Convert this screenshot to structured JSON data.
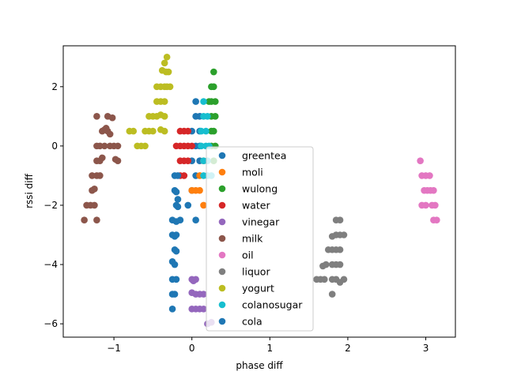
{
  "chart_data": {
    "type": "scatter",
    "xlabel": "phase diff",
    "ylabel": "rssi diff",
    "xlim": [
      -1.65,
      3.38
    ],
    "ylim": [
      -6.45,
      3.38
    ],
    "xticks": [
      -1,
      0,
      1,
      2,
      3
    ],
    "yticks": [
      -6,
      -4,
      -2,
      0,
      2
    ],
    "xtick_labels": [
      "−1",
      "0",
      "1",
      "2",
      "3"
    ],
    "ytick_labels": [
      "−6",
      "−4",
      "−2",
      "0",
      "2"
    ],
    "grid": false,
    "legend_position": "lower-center",
    "series": [
      {
        "name": "greentea",
        "color": "#1f77b4",
        "points": [
          [
            0.05,
            1.5
          ],
          [
            0.05,
            1.0
          ],
          [
            0.0,
            0.5
          ],
          [
            0.05,
            0.0
          ],
          [
            0.0,
            -0.5
          ],
          [
            0.05,
            -1.0
          ],
          [
            0.0,
            -1.5
          ],
          [
            -0.05,
            -2.0
          ],
          [
            0.05,
            -2.5
          ],
          [
            0.1,
            1.0
          ],
          [
            0.1,
            0.5
          ],
          [
            0.1,
            -0.5
          ],
          [
            0.1,
            0.0
          ]
        ]
      },
      {
        "name": "moli",
        "color": "#ff7f0e",
        "points": [
          [
            0.05,
            -1.5
          ],
          [
            0.1,
            -1.5
          ],
          [
            0.15,
            -2.0
          ],
          [
            0.1,
            -1.0
          ],
          [
            0.15,
            -0.5
          ],
          [
            0.0,
            -1.5
          ]
        ]
      },
      {
        "name": "wulong",
        "color": "#2ca02c",
        "points": [
          [
            0.28,
            2.5
          ],
          [
            0.25,
            2.0
          ],
          [
            0.28,
            2.0
          ],
          [
            0.22,
            1.5
          ],
          [
            0.25,
            1.5
          ],
          [
            0.3,
            1.5
          ],
          [
            0.25,
            1.0
          ],
          [
            0.3,
            1.0
          ],
          [
            0.28,
            0.5
          ],
          [
            0.25,
            0.5
          ],
          [
            0.25,
            0.0
          ],
          [
            0.3,
            0.0
          ],
          [
            0.28,
            -0.5
          ]
        ]
      },
      {
        "name": "water",
        "color": "#d62728",
        "points": [
          [
            -0.15,
            0.5
          ],
          [
            -0.1,
            0.5
          ],
          [
            -0.05,
            0.5
          ],
          [
            -0.15,
            0.0
          ],
          [
            -0.1,
            0.0
          ],
          [
            -0.05,
            0.0
          ],
          [
            0.0,
            0.0
          ],
          [
            -0.15,
            -0.5
          ],
          [
            -0.1,
            -0.5
          ],
          [
            -0.05,
            -0.5
          ],
          [
            -0.15,
            -1.0
          ],
          [
            -0.1,
            -1.0
          ],
          [
            -0.2,
            0.0
          ]
        ]
      },
      {
        "name": "vinegar",
        "color": "#9467bd",
        "points": [
          [
            0.0,
            -4.5
          ],
          [
            0.05,
            -4.5
          ],
          [
            0.0,
            -4.95
          ],
          [
            0.05,
            -5.0
          ],
          [
            0.1,
            -5.0
          ],
          [
            0.15,
            -5.0
          ],
          [
            0.0,
            -5.5
          ],
          [
            0.05,
            -5.5
          ],
          [
            0.1,
            -5.5
          ],
          [
            0.15,
            -5.5
          ],
          [
            0.2,
            -6.0
          ],
          [
            0.25,
            -5.95
          ],
          [
            0.02,
            -4.55
          ]
        ]
      },
      {
        "name": "milk",
        "color": "#8c564b",
        "points": [
          [
            -1.38,
            -2.5
          ],
          [
            -1.35,
            -2.0
          ],
          [
            -1.3,
            -2.0
          ],
          [
            -1.25,
            -2.0
          ],
          [
            -1.22,
            -2.5
          ],
          [
            -1.28,
            -1.5
          ],
          [
            -1.25,
            -1.45
          ],
          [
            -1.28,
            -1.0
          ],
          [
            -1.22,
            -1.0
          ],
          [
            -1.18,
            -1.0
          ],
          [
            -1.22,
            -0.5
          ],
          [
            -1.18,
            -0.5
          ],
          [
            -1.15,
            -0.4
          ],
          [
            -1.22,
            0.0
          ],
          [
            -1.18,
            0.0
          ],
          [
            -1.12,
            0.0
          ],
          [
            -1.15,
            0.5
          ],
          [
            -1.12,
            0.55
          ],
          [
            -1.08,
            0.5
          ],
          [
            -1.05,
            0.4
          ],
          [
            -1.1,
            0.6
          ],
          [
            -1.08,
            1.0
          ],
          [
            -1.02,
            0.95
          ],
          [
            -1.22,
            1.0
          ],
          [
            -1.0,
            0.0
          ],
          [
            -0.95,
            0.0
          ],
          [
            -0.98,
            -0.45
          ],
          [
            -0.95,
            -0.5
          ],
          [
            -1.05,
            0.0
          ]
        ]
      },
      {
        "name": "oil",
        "color": "#e377c2",
        "points": [
          [
            2.93,
            -0.5
          ],
          [
            2.95,
            -1.0
          ],
          [
            3.0,
            -1.0
          ],
          [
            3.05,
            -1.0
          ],
          [
            2.98,
            -1.5
          ],
          [
            3.02,
            -1.5
          ],
          [
            3.06,
            -1.5
          ],
          [
            3.1,
            -1.5
          ],
          [
            2.95,
            -2.0
          ],
          [
            3.0,
            -2.0
          ],
          [
            3.08,
            -2.0
          ],
          [
            3.12,
            -2.0
          ],
          [
            3.1,
            -2.5
          ],
          [
            3.14,
            -2.5
          ]
        ]
      },
      {
        "name": "liquor",
        "color": "#7f7f7f",
        "points": [
          [
            1.85,
            -2.5
          ],
          [
            1.9,
            -2.5
          ],
          [
            1.85,
            -3.0
          ],
          [
            1.9,
            -3.0
          ],
          [
            1.95,
            -3.0
          ],
          [
            1.8,
            -3.05
          ],
          [
            1.75,
            -3.5
          ],
          [
            1.8,
            -3.5
          ],
          [
            1.85,
            -3.5
          ],
          [
            1.9,
            -3.5
          ],
          [
            1.68,
            -4.05
          ],
          [
            1.72,
            -4.0
          ],
          [
            1.8,
            -4.0
          ],
          [
            1.85,
            -4.0
          ],
          [
            1.9,
            -4.0
          ],
          [
            1.65,
            -4.5
          ],
          [
            1.7,
            -4.5
          ],
          [
            1.8,
            -4.5
          ],
          [
            1.85,
            -4.5
          ],
          [
            1.95,
            -4.5
          ],
          [
            1.8,
            -5.0
          ],
          [
            1.6,
            -4.5
          ],
          [
            1.9,
            -4.6
          ]
        ]
      },
      {
        "name": "yogurt",
        "color": "#bcbd22",
        "points": [
          [
            -0.32,
            3.0
          ],
          [
            -0.35,
            2.8
          ],
          [
            -0.38,
            2.55
          ],
          [
            -0.33,
            2.5
          ],
          [
            -0.3,
            2.5
          ],
          [
            -0.45,
            2.0
          ],
          [
            -0.4,
            2.0
          ],
          [
            -0.35,
            2.0
          ],
          [
            -0.32,
            2.0
          ],
          [
            -0.28,
            2.0
          ],
          [
            -0.45,
            1.5
          ],
          [
            -0.4,
            1.5
          ],
          [
            -0.35,
            1.5
          ],
          [
            -0.55,
            1.0
          ],
          [
            -0.5,
            1.0
          ],
          [
            -0.45,
            1.0
          ],
          [
            -0.4,
            1.05
          ],
          [
            -0.35,
            1.0
          ],
          [
            -0.6,
            0.5
          ],
          [
            -0.55,
            0.5
          ],
          [
            -0.5,
            0.5
          ],
          [
            -0.4,
            0.55
          ],
          [
            -0.35,
            0.5
          ],
          [
            -0.6,
            0.0
          ],
          [
            -0.65,
            0.0
          ],
          [
            -0.7,
            0.0
          ],
          [
            -0.75,
            0.5
          ],
          [
            -0.8,
            0.5
          ]
        ]
      },
      {
        "name": "colanosugar",
        "color": "#17becf",
        "points": [
          [
            0.15,
            1.5
          ],
          [
            0.15,
            1.0
          ],
          [
            0.2,
            1.0
          ],
          [
            0.12,
            0.5
          ],
          [
            0.18,
            0.5
          ],
          [
            0.12,
            0.0
          ],
          [
            0.18,
            0.0
          ],
          [
            0.22,
            0.0
          ],
          [
            0.15,
            -0.5
          ],
          [
            0.2,
            -0.5
          ],
          [
            0.15,
            -1.0
          ],
          [
            0.2,
            -1.0
          ],
          [
            0.25,
            -1.0
          ]
        ]
      },
      {
        "name": "cola",
        "color": "#1f77b4",
        "points": [
          [
            -0.22,
            -1.0
          ],
          [
            -0.18,
            -1.0
          ],
          [
            -0.22,
            -1.5
          ],
          [
            -0.2,
            -1.55
          ],
          [
            -0.18,
            -1.8
          ],
          [
            -0.2,
            -2.0
          ],
          [
            -0.18,
            -2.05
          ],
          [
            -0.25,
            -2.5
          ],
          [
            -0.2,
            -2.55
          ],
          [
            -0.15,
            -2.5
          ],
          [
            -0.25,
            -3.0
          ],
          [
            -0.22,
            -3.05
          ],
          [
            -0.2,
            -3.0
          ],
          [
            -0.22,
            -3.5
          ],
          [
            -0.2,
            -3.55
          ],
          [
            -0.25,
            -3.9
          ],
          [
            -0.22,
            -4.0
          ],
          [
            -0.25,
            -4.5
          ],
          [
            -0.2,
            -4.5
          ],
          [
            -0.25,
            -5.0
          ],
          [
            -0.22,
            -5.0
          ],
          [
            -0.25,
            -5.5
          ]
        ]
      }
    ]
  }
}
